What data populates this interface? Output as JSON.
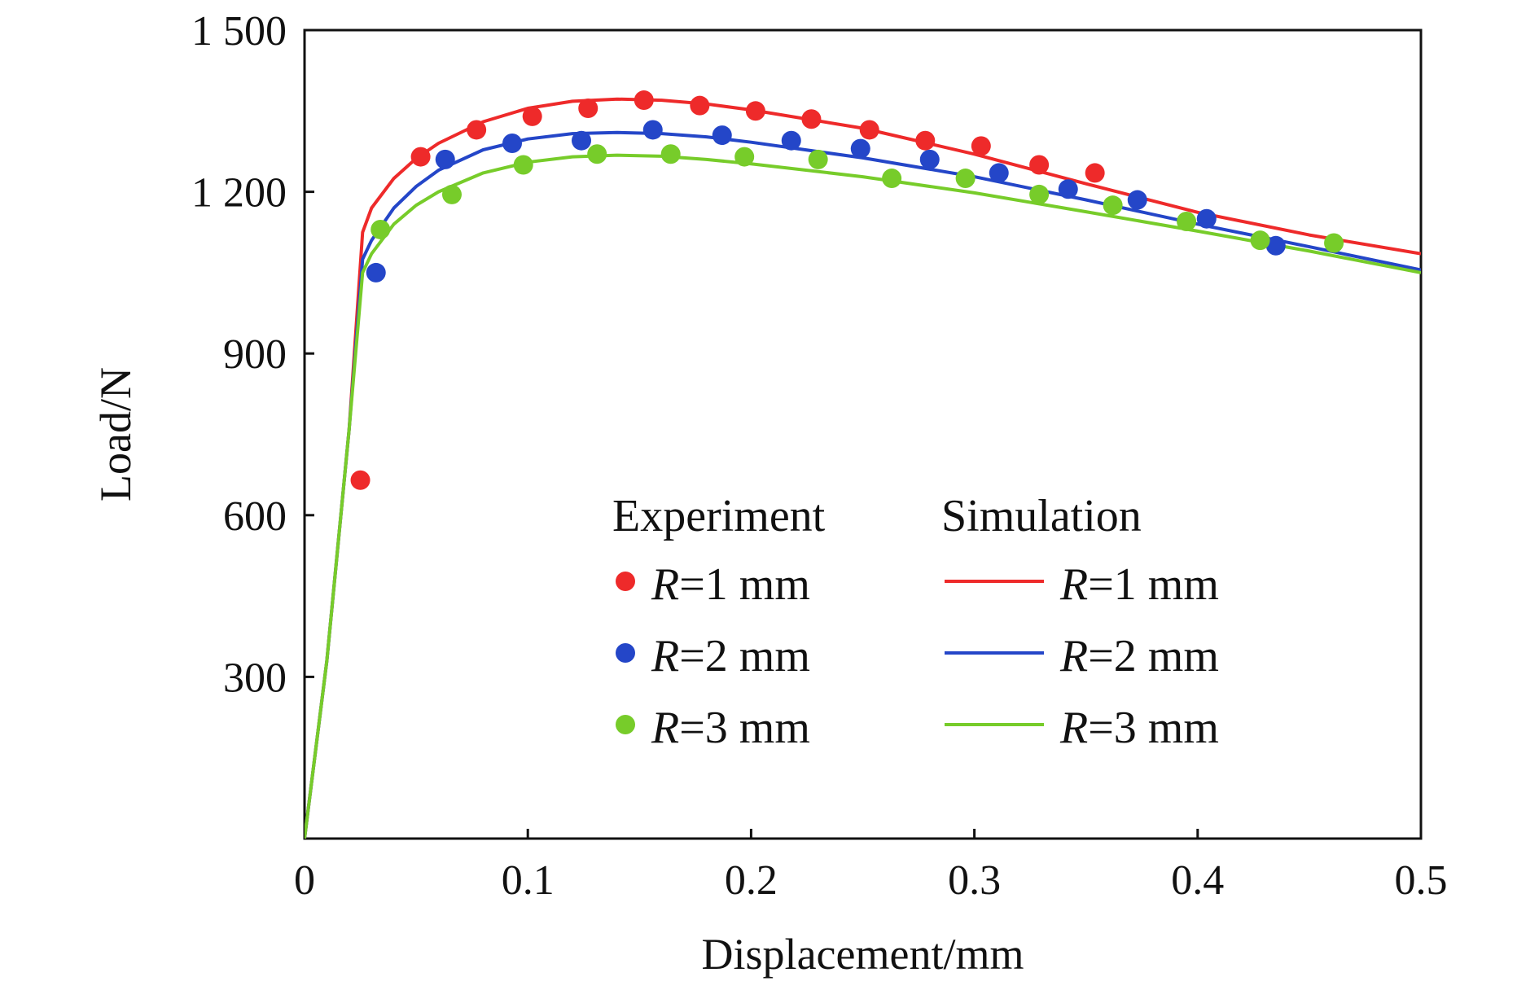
{
  "chart_data": {
    "type": "line",
    "title": "",
    "xlabel": "Displacement/mm",
    "ylabel": "Load/N",
    "xlim": [
      0,
      0.5
    ],
    "ylim": [
      0,
      1500
    ],
    "x_ticks": [
      0,
      0.1,
      0.2,
      0.3,
      0.4,
      0.5
    ],
    "x_tick_labels": [
      "0",
      "0.1",
      "0.2",
      "0.3",
      "0.4",
      "0.5"
    ],
    "y_ticks": [
      300,
      600,
      900,
      1200,
      1500
    ],
    "y_tick_labels": [
      "300",
      "600",
      "900",
      "1 200",
      "1 500"
    ],
    "grid": false,
    "legend": {
      "placement": "center-right",
      "experiment_heading": "Experiment",
      "simulation_heading": "Simulation"
    },
    "series": [
      {
        "name": "R=1 mm",
        "label_italic": "R",
        "label_rest": "=1 mm",
        "group": "Experiment",
        "kind": "scatter",
        "color": "#ee2a2a",
        "points": [
          [
            0.025,
            665
          ],
          [
            0.052,
            1265
          ],
          [
            0.077,
            1315
          ],
          [
            0.102,
            1340
          ],
          [
            0.127,
            1355
          ],
          [
            0.152,
            1370
          ],
          [
            0.177,
            1360
          ],
          [
            0.202,
            1350
          ],
          [
            0.227,
            1335
          ],
          [
            0.253,
            1315
          ],
          [
            0.278,
            1295
          ],
          [
            0.303,
            1285
          ],
          [
            0.329,
            1250
          ],
          [
            0.354,
            1235
          ]
        ]
      },
      {
        "name": "R=2 mm",
        "label_italic": "R",
        "label_rest": "=2 mm",
        "group": "Experiment",
        "kind": "scatter",
        "color": "#2446c8",
        "points": [
          [
            0.032,
            1050
          ],
          [
            0.063,
            1260
          ],
          [
            0.093,
            1290
          ],
          [
            0.124,
            1295
          ],
          [
            0.156,
            1315
          ],
          [
            0.187,
            1305
          ],
          [
            0.218,
            1295
          ],
          [
            0.249,
            1280
          ],
          [
            0.28,
            1260
          ],
          [
            0.311,
            1235
          ],
          [
            0.342,
            1205
          ],
          [
            0.373,
            1185
          ],
          [
            0.404,
            1150
          ],
          [
            0.435,
            1100
          ]
        ]
      },
      {
        "name": "R=3 mm",
        "label_italic": "R",
        "label_rest": "=3 mm",
        "group": "Experiment",
        "kind": "scatter",
        "color": "#77cc2a",
        "points": [
          [
            0.034,
            1130
          ],
          [
            0.066,
            1195
          ],
          [
            0.098,
            1250
          ],
          [
            0.131,
            1270
          ],
          [
            0.164,
            1270
          ],
          [
            0.197,
            1265
          ],
          [
            0.23,
            1260
          ],
          [
            0.263,
            1225
          ],
          [
            0.296,
            1225
          ],
          [
            0.329,
            1195
          ],
          [
            0.362,
            1175
          ],
          [
            0.395,
            1145
          ],
          [
            0.428,
            1110
          ],
          [
            0.461,
            1105
          ]
        ]
      },
      {
        "name": "R=1 mm",
        "label_italic": "R",
        "label_rest": "=1 mm",
        "group": "Simulation",
        "kind": "line",
        "color": "#ee2a2a",
        "points": [
          [
            0,
            0
          ],
          [
            0.01,
            330
          ],
          [
            0.02,
            760
          ],
          [
            0.026,
            1125
          ],
          [
            0.03,
            1170
          ],
          [
            0.04,
            1225
          ],
          [
            0.05,
            1262
          ],
          [
            0.06,
            1290
          ],
          [
            0.08,
            1330
          ],
          [
            0.1,
            1355
          ],
          [
            0.12,
            1368
          ],
          [
            0.14,
            1372
          ],
          [
            0.16,
            1370
          ],
          [
            0.18,
            1363
          ],
          [
            0.2,
            1352
          ],
          [
            0.25,
            1318
          ],
          [
            0.3,
            1270
          ],
          [
            0.35,
            1215
          ],
          [
            0.4,
            1162
          ],
          [
            0.45,
            1120
          ],
          [
            0.5,
            1085
          ]
        ]
      },
      {
        "name": "R=2 mm",
        "label_italic": "R",
        "label_rest": "=2 mm",
        "group": "Simulation",
        "kind": "line",
        "color": "#2446c8",
        "points": [
          [
            0,
            0
          ],
          [
            0.01,
            330
          ],
          [
            0.02,
            760
          ],
          [
            0.026,
            1075
          ],
          [
            0.03,
            1110
          ],
          [
            0.04,
            1170
          ],
          [
            0.05,
            1210
          ],
          [
            0.06,
            1240
          ],
          [
            0.08,
            1278
          ],
          [
            0.1,
            1298
          ],
          [
            0.12,
            1308
          ],
          [
            0.14,
            1310
          ],
          [
            0.16,
            1308
          ],
          [
            0.18,
            1302
          ],
          [
            0.2,
            1292
          ],
          [
            0.25,
            1263
          ],
          [
            0.3,
            1228
          ],
          [
            0.35,
            1185
          ],
          [
            0.4,
            1140
          ],
          [
            0.45,
            1098
          ],
          [
            0.5,
            1055
          ]
        ]
      },
      {
        "name": "R=3 mm",
        "label_italic": "R",
        "label_rest": "=3 mm",
        "group": "Simulation",
        "kind": "line",
        "color": "#77cc2a",
        "points": [
          [
            0,
            0
          ],
          [
            0.01,
            330
          ],
          [
            0.02,
            760
          ],
          [
            0.026,
            1050
          ],
          [
            0.03,
            1085
          ],
          [
            0.04,
            1140
          ],
          [
            0.05,
            1175
          ],
          [
            0.06,
            1200
          ],
          [
            0.08,
            1235
          ],
          [
            0.1,
            1255
          ],
          [
            0.12,
            1265
          ],
          [
            0.14,
            1268
          ],
          [
            0.16,
            1266
          ],
          [
            0.18,
            1260
          ],
          [
            0.2,
            1252
          ],
          [
            0.25,
            1228
          ],
          [
            0.3,
            1198
          ],
          [
            0.35,
            1163
          ],
          [
            0.4,
            1127
          ],
          [
            0.45,
            1090
          ],
          [
            0.5,
            1050
          ]
        ]
      }
    ]
  }
}
